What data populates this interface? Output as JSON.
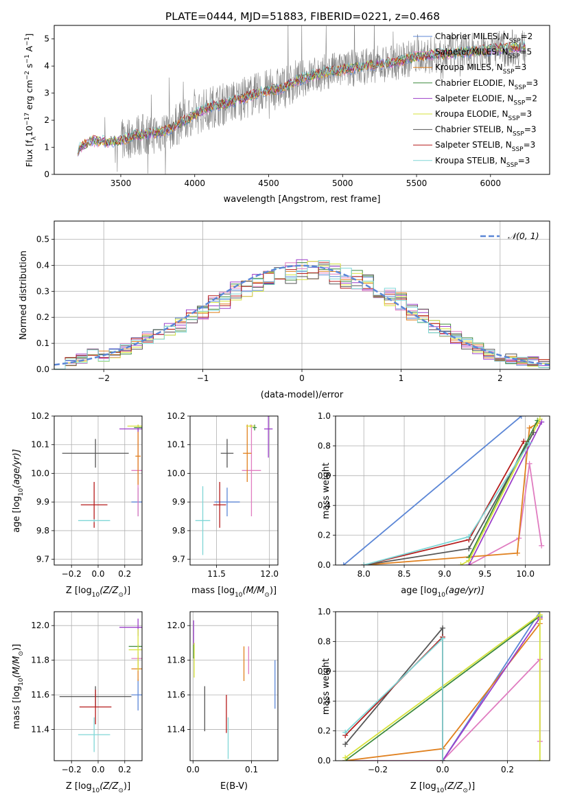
{
  "colors": {
    "chabrier_miles": "#5b86d6",
    "salpeter_miles": "#e07cc0",
    "kroupa_miles": "#e0801e",
    "chabrier_elodie": "#3c8a3c",
    "salpeter_elodie": "#9b3fc9",
    "kroupa_elodie": "#d6e23a",
    "chabrier_stelib": "#555555",
    "salpeter_stelib": "#b51a1a",
    "kroupa_stelib": "#7fd6d6",
    "normal": "#5b86d6"
  },
  "legend_spectrum": [
    {
      "label": "Chabrier MILES, N",
      "sub": "SSP",
      "tail": "=2",
      "color": "#5b86d6"
    },
    {
      "label": "Salpeter MILES, N",
      "sub": "SSP",
      "tail": "=5",
      "color": "#e07cc0"
    },
    {
      "label": "Kroupa MILES, N",
      "sub": "SSP",
      "tail": "=3",
      "color": "#e0801e"
    },
    {
      "label": "Chabrier ELODIE, N",
      "sub": "SSP",
      "tail": "=3",
      "color": "#3c8a3c"
    },
    {
      "label": "Salpeter ELODIE, N",
      "sub": "SSP",
      "tail": "=2",
      "color": "#9b3fc9"
    },
    {
      "label": "Kroupa ELODIE, N",
      "sub": "SSP",
      "tail": "=3",
      "color": "#d6e23a"
    },
    {
      "label": "Chabrier STELIB, N",
      "sub": "SSP",
      "tail": "=3",
      "color": "#555555"
    },
    {
      "label": "Salpeter STELIB, N",
      "sub": "SSP",
      "tail": "=3",
      "color": "#b51a1a"
    },
    {
      "label": "Kroupa STELIB, N",
      "sub": "SSP",
      "tail": "=3",
      "color": "#7fd6d6"
    }
  ],
  "chart_data": [
    {
      "id": "spectrum",
      "type": "line",
      "title": "PLATE=0444, MJD=51883, FIBERID=0221, z=0.468",
      "xlabel": "wavelength [Angstrom, rest frame]",
      "ylabel": "Flux [f",
      "ylabel_sub": "λ",
      "ylabel_rest": "10",
      "ylabel_sup1": "−17",
      "ylabel_mid": " erg cm",
      "ylabel_sup2": "−2",
      "ylabel_mid2": " s",
      "ylabel_sup3": "−1",
      "ylabel_mid3": " A",
      "ylabel_sup4": "−1",
      "ylabel_end": "]",
      "xlim": [
        3050,
        6400
      ],
      "ylim": [
        0,
        5.5
      ],
      "xticks": [
        3500,
        4000,
        4500,
        5000,
        5500,
        6000
      ],
      "yticks": [
        0,
        1,
        2,
        3,
        4,
        5
      ],
      "continuum": [
        [
          3210,
          0.9
        ],
        [
          3290,
          1.25
        ],
        [
          3400,
          1.2
        ],
        [
          3500,
          1.25
        ],
        [
          3600,
          1.45
        ],
        [
          3700,
          1.5
        ],
        [
          3800,
          1.6
        ],
        [
          3900,
          1.9
        ],
        [
          4000,
          2.2
        ],
        [
          4100,
          2.5
        ],
        [
          4200,
          2.6
        ],
        [
          4300,
          2.75
        ],
        [
          4400,
          2.95
        ],
        [
          4500,
          3.1
        ],
        [
          4600,
          3.2
        ],
        [
          4700,
          3.5
        ],
        [
          4800,
          3.65
        ],
        [
          4900,
          3.8
        ],
        [
          5000,
          3.85
        ],
        [
          5100,
          3.95
        ],
        [
          5200,
          4.05
        ],
        [
          5300,
          4.1
        ],
        [
          5400,
          4.2
        ],
        [
          5500,
          4.35
        ],
        [
          5600,
          4.4
        ],
        [
          5700,
          4.45
        ],
        [
          5800,
          4.5
        ],
        [
          5900,
          4.55
        ],
        [
          6000,
          4.6
        ],
        [
          6100,
          4.65
        ],
        [
          6200,
          4.7
        ],
        [
          6240,
          4.7
        ]
      ]
    },
    {
      "id": "residuals",
      "type": "line",
      "xlabel": "(data-model)/error",
      "ylabel": "Normed distribution",
      "legend": "𝒩(0, 1)",
      "xlim": [
        -2.5,
        2.5
      ],
      "ylim": [
        0,
        0.57
      ],
      "xticks": [
        -2,
        -1,
        0,
        1,
        2
      ],
      "xtick_labels": [
        "−2",
        "−1",
        "0",
        "1",
        "2"
      ],
      "yticks": [
        0,
        0.1,
        0.2,
        0.3,
        0.4,
        0.5
      ],
      "ytick_labels": [
        "0.0",
        "0.1",
        "0.2",
        "0.3",
        "0.4",
        "0.5"
      ],
      "hist_center": [
        0.02,
        0.03,
        0.04,
        0.06,
        0.05,
        0.06,
        0.08,
        0.1,
        0.12,
        0.14,
        0.15,
        0.17,
        0.2,
        0.22,
        0.25,
        0.27,
        0.3,
        0.31,
        0.33,
        0.35,
        0.36,
        0.37,
        0.38,
        0.39,
        0.38,
        0.37,
        0.35,
        0.34,
        0.33,
        0.31,
        0.28,
        0.26,
        0.22,
        0.2,
        0.17,
        0.15,
        0.12,
        0.1,
        0.08,
        0.06,
        0.05,
        0.04,
        0.03,
        0.03,
        0.02
      ]
    },
    {
      "id": "age_vs_Z",
      "type": "scatter",
      "xlabel": "Z [log",
      "xlabel_sub": "10",
      "xlabel_rest": "(Z/Z",
      "xlabel_sub2": "⊙",
      "xlabel_end": ")]",
      "ylabel": "age  [log",
      "ylabel_sub": "10",
      "ylabel_rest": "(age/yr)]",
      "xlim": [
        -0.33,
        0.33
      ],
      "ylim": [
        9.68,
        10.2
      ],
      "xticks": [
        -0.2,
        0.0,
        0.2
      ],
      "xtick_labels": [
        "−0.2",
        "0.0",
        "0.2"
      ],
      "yticks": [
        9.7,
        9.8,
        9.9,
        10.0,
        10.1,
        10.2
      ],
      "ytick_labels": [
        "9.7",
        "9.8",
        "9.9",
        "10.0",
        "10.1",
        "10.2"
      ],
      "points": [
        {
          "series": "chabrier_miles",
          "x": 0.3,
          "y": 9.9,
          "xerr": 0.05,
          "yerr": 0.05
        },
        {
          "series": "salpeter_miles",
          "x": 0.3,
          "y": 10.01,
          "xerr": 0.05,
          "yerr": 0.16
        },
        {
          "series": "kroupa_miles",
          "x": 0.3,
          "y": 10.06,
          "xerr": 0.02,
          "yerr": 0.1
        },
        {
          "series": "chabrier_elodie",
          "x": 0.3,
          "y": 10.16,
          "xerr": 0.03,
          "yerr": 0.01
        },
        {
          "series": "salpeter_elodie",
          "x": 0.3,
          "y": 10.155,
          "xerr": 0.14,
          "yerr": 0.01
        },
        {
          "series": "kroupa_elodie",
          "x": 0.3,
          "y": 10.165,
          "xerr": 0.08,
          "yerr": 0.005
        },
        {
          "series": "chabrier_stelib",
          "x": -0.02,
          "y": 10.07,
          "xerr": 0.25,
          "yerr": 0.05
        },
        {
          "series": "salpeter_stelib",
          "x": -0.03,
          "y": 9.89,
          "xerr": 0.1,
          "yerr": 0.08
        },
        {
          "series": "kroupa_stelib",
          "x": -0.03,
          "y": 9.835,
          "xerr": 0.12,
          "yerr": 0.005
        }
      ]
    },
    {
      "id": "age_vs_mass",
      "type": "scatter",
      "xlabel": "mass [log",
      "xlabel_sub": "10",
      "xlabel_rest": "(M/M",
      "xlabel_sub2": "⊙",
      "xlabel_end": ")]",
      "xlim": [
        11.25,
        12.08
      ],
      "ylim": [
        9.68,
        10.2
      ],
      "xticks": [
        11.5,
        12.0
      ],
      "xtick_labels": [
        "11.5",
        "12.0"
      ],
      "yticks": [
        9.7,
        9.8,
        9.9,
        10.0,
        10.1,
        10.2
      ],
      "ytick_labels": [
        "9.7",
        "9.8",
        "9.9",
        "10.0",
        "10.1",
        "10.2"
      ],
      "points": [
        {
          "series": "chabrier_miles",
          "x": 11.6,
          "y": 9.9,
          "xerr": 0.12,
          "yerr": 0.05
        },
        {
          "series": "salpeter_miles",
          "x": 11.83,
          "y": 10.01,
          "xerr": 0.09,
          "yerr": 0.16
        },
        {
          "series": "kroupa_miles",
          "x": 11.79,
          "y": 10.07,
          "xerr": 0.04,
          "yerr": 0.1
        },
        {
          "series": "chabrier_elodie",
          "x": 11.86,
          "y": 10.16,
          "xerr": 0.02,
          "yerr": 0.01
        },
        {
          "series": "salpeter_elodie",
          "x": 11.99,
          "y": 10.155,
          "xerr": 0.04,
          "yerr": 0.1
        },
        {
          "series": "kroupa_elodie",
          "x": 11.82,
          "y": 10.165,
          "xerr": 0.04,
          "yerr": 0.005
        },
        {
          "series": "chabrier_stelib",
          "x": 11.6,
          "y": 10.07,
          "xerr": 0.06,
          "yerr": 0.05
        },
        {
          "series": "salpeter_stelib",
          "x": 11.53,
          "y": 9.89,
          "xerr": 0.06,
          "yerr": 0.08
        },
        {
          "series": "kroupa_stelib",
          "x": 11.37,
          "y": 9.835,
          "xerr": 0.07,
          "yerr": 0.12
        }
      ]
    },
    {
      "id": "weight_vs_age",
      "type": "line",
      "xlabel": "age  [log",
      "xlabel_sub": "10",
      "xlabel_rest": "(age/yr)]",
      "ylabel": "mass weight",
      "xlim": [
        7.65,
        10.3
      ],
      "ylim": [
        0,
        1
      ],
      "xticks": [
        8.0,
        8.5,
        9.0,
        9.5,
        10.0
      ],
      "xtick_labels": [
        "8.0",
        "8.5",
        "9.0",
        "9.5",
        "10.0"
      ],
      "yticks": [
        0,
        0.2,
        0.4,
        0.6,
        0.8,
        1.0
      ],
      "ytick_labels": [
        "0.0",
        "0.2",
        "0.4",
        "0.6",
        "0.8",
        "1.0"
      ],
      "series": [
        {
          "series": "chabrier_miles",
          "x": [
            7.75,
            9.95
          ],
          "y": [
            0.0,
            1.0
          ]
        },
        {
          "series": "salpeter_miles",
          "x": [
            9.3,
            9.92,
            10.05,
            10.2
          ],
          "y": [
            0.0,
            0.18,
            0.68,
            0.13
          ]
        },
        {
          "series": "kroupa_miles",
          "x": [
            8.0,
            9.9,
            10.05,
            10.15
          ],
          "y": [
            0.0,
            0.08,
            0.92,
            0.95
          ]
        },
        {
          "series": "chabrier_elodie",
          "x": [
            9.3,
            10.15
          ],
          "y": [
            0.05,
            0.97
          ]
        },
        {
          "series": "salpeter_elodie",
          "x": [
            9.3,
            10.2
          ],
          "y": [
            0.0,
            0.96
          ]
        },
        {
          "series": "kroupa_elodie",
          "x": [
            9.2,
            9.3,
            10.18
          ],
          "y": [
            0.0,
            0.03,
            0.98
          ]
        },
        {
          "series": "chabrier_stelib",
          "x": [
            8.0,
            9.3,
            10.1
          ],
          "y": [
            0.0,
            0.11,
            0.89
          ]
        },
        {
          "series": "salpeter_stelib",
          "x": [
            8.0,
            9.3,
            9.98
          ],
          "y": [
            0.0,
            0.17,
            0.83
          ]
        },
        {
          "series": "kroupa_stelib",
          "x": [
            8.0,
            9.3,
            10.05
          ],
          "y": [
            0.0,
            0.19,
            0.82
          ]
        }
      ]
    },
    {
      "id": "mass_vs_Z",
      "type": "scatter",
      "xlabel": "Z [log",
      "xlabel_sub": "10",
      "xlabel_rest": "(Z/Z",
      "xlabel_sub2": "⊙",
      "xlabel_end": ")]",
      "ylabel": "mass [log",
      "ylabel_sub": "10",
      "ylabel_rest": "(M/M",
      "ylabel_sub2": "⊙",
      "ylabel_end": ")]",
      "xlim": [
        -0.33,
        0.33
      ],
      "ylim": [
        11.22,
        12.08
      ],
      "xticks": [
        -0.2,
        0.0,
        0.2
      ],
      "xtick_labels": [
        "−0.2",
        "0.0",
        "0.2"
      ],
      "yticks": [
        11.4,
        11.6,
        11.8,
        12.0
      ],
      "ytick_labels": [
        "11.4",
        "11.6",
        "11.8",
        "12.0"
      ],
      "points": [
        {
          "series": "chabrier_miles",
          "x": 0.3,
          "y": 11.6,
          "xerr": 0.05,
          "yerr": 0.09
        },
        {
          "series": "salpeter_miles",
          "x": 0.3,
          "y": 11.81,
          "xerr": 0.05,
          "yerr": 0.04
        },
        {
          "series": "kroupa_miles",
          "x": 0.3,
          "y": 11.75,
          "xerr": 0.05,
          "yerr": 0.07
        },
        {
          "series": "chabrier_elodie",
          "x": 0.3,
          "y": 11.88,
          "xerr": 0.07,
          "yerr": 0.01
        },
        {
          "series": "salpeter_elodie",
          "x": 0.3,
          "y": 11.99,
          "xerr": 0.14,
          "yerr": 0.05
        },
        {
          "series": "kroupa_elodie",
          "x": 0.3,
          "y": 11.86,
          "xerr": 0.07,
          "yerr": 0.12
        },
        {
          "series": "chabrier_stelib",
          "x": -0.02,
          "y": 11.59,
          "xerr": 0.27,
          "yerr": 0.06
        },
        {
          "series": "salpeter_stelib",
          "x": -0.02,
          "y": 11.53,
          "xerr": 0.12,
          "yerr": 0.1
        },
        {
          "series": "kroupa_stelib",
          "x": -0.03,
          "y": 11.37,
          "xerr": 0.12,
          "yerr": 0.1
        }
      ]
    },
    {
      "id": "mass_vs_ebv",
      "type": "scatter",
      "xlabel": "E(B-V)",
      "xlim": [
        -0.005,
        0.145
      ],
      "ylim": [
        11.22,
        12.08
      ],
      "xticks": [
        0.0,
        0.1
      ],
      "xtick_labels": [
        "0.0",
        "0.1"
      ],
      "yticks": [
        11.4,
        11.6,
        11.8,
        12.0
      ],
      "ytick_labels": [
        "11.4",
        "11.6",
        "11.8",
        "12.0"
      ],
      "points": [
        {
          "series": "chabrier_miles",
          "x": 0.14,
          "y": 11.66,
          "xerr": 0,
          "yerr": 0.14
        },
        {
          "series": "salpeter_miles",
          "x": 0.095,
          "y": 11.8,
          "xerr": 0,
          "yerr": 0.08
        },
        {
          "series": "kroupa_miles",
          "x": 0.087,
          "y": 11.78,
          "xerr": 0,
          "yerr": 0.1
        },
        {
          "series": "chabrier_elodie",
          "x": 0.001,
          "y": 11.85,
          "xerr": 0,
          "yerr": 0.04
        },
        {
          "series": "salpeter_elodie",
          "x": 0.001,
          "y": 11.96,
          "xerr": 0,
          "yerr": 0.07
        },
        {
          "series": "kroupa_elodie",
          "x": 0.002,
          "y": 11.8,
          "xerr": 0,
          "yerr": 0.1
        },
        {
          "series": "chabrier_stelib",
          "x": 0.02,
          "y": 11.52,
          "xerr": 0,
          "yerr": 0.13
        },
        {
          "series": "salpeter_stelib",
          "x": 0.057,
          "y": 11.49,
          "xerr": 0,
          "yerr": 0.11
        },
        {
          "series": "kroupa_stelib",
          "x": 0.06,
          "y": 11.35,
          "xerr": 0,
          "yerr": 0.12
        }
      ]
    },
    {
      "id": "weight_vs_Z",
      "type": "line",
      "xlabel": "Z [log",
      "xlabel_sub": "10",
      "xlabel_rest": "(Z/Z",
      "xlabel_sub2": "⊙",
      "xlabel_end": ")]",
      "ylabel": "mass weight",
      "xlim": [
        -0.33,
        0.33
      ],
      "ylim": [
        0,
        1
      ],
      "xticks": [
        -0.2,
        0.0,
        0.2
      ],
      "xtick_labels": [
        "−0.2",
        "0.0",
        "0.2"
      ],
      "yticks": [
        0,
        0.2,
        0.4,
        0.6,
        0.8,
        1.0
      ],
      "ytick_labels": [
        "0.0",
        "0.2",
        "0.4",
        "0.6",
        "0.8",
        "1.0"
      ],
      "series": [
        {
          "series": "chabrier_miles",
          "x": [
            0.0,
            0.3
          ],
          "y": [
            0.0,
            1.0
          ]
        },
        {
          "series": "salpeter_miles",
          "x": [
            -0.3,
            0.0,
            0.3,
            0.3
          ],
          "y": [
            0.0,
            0.0,
            0.68,
            0.13
          ]
        },
        {
          "series": "kroupa_miles",
          "x": [
            -0.3,
            0.0,
            0.3,
            0.3
          ],
          "y": [
            0.0,
            0.08,
            0.92,
            0.95
          ]
        },
        {
          "series": "chabrier_elodie",
          "x": [
            -0.3,
            0.3
          ],
          "y": [
            0.0,
            0.97
          ]
        },
        {
          "series": "salpeter_elodie",
          "x": [
            0.0,
            0.3
          ],
          "y": [
            0.0,
            0.96
          ]
        },
        {
          "series": "kroupa_elodie",
          "x": [
            -0.3,
            0.3,
            0.3
          ],
          "y": [
            0.02,
            0.98,
            0.0
          ]
        },
        {
          "series": "chabrier_stelib",
          "x": [
            -0.3,
            0.0,
            0.0
          ],
          "y": [
            0.11,
            0.89,
            0.0
          ]
        },
        {
          "series": "salpeter_stelib",
          "x": [
            -0.3,
            0.0,
            0.0
          ],
          "y": [
            0.17,
            0.83,
            0.0
          ]
        },
        {
          "series": "kroupa_stelib",
          "x": [
            -0.3,
            0.0,
            0.0
          ],
          "y": [
            0.19,
            0.82,
            0.0
          ]
        }
      ]
    }
  ]
}
